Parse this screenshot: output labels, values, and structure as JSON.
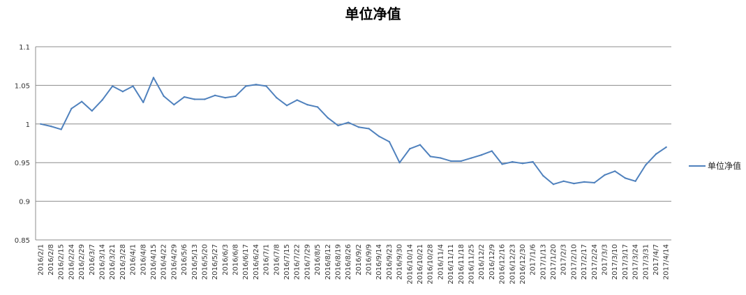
{
  "chart_data": {
    "type": "line",
    "title": "单位净值",
    "xlabel": "",
    "ylabel": "",
    "ylim": [
      0.85,
      1.1
    ],
    "yticks": [
      "1.1",
      "1.05",
      "1",
      "0.95",
      "0.9",
      "0.85"
    ],
    "grid": true,
    "legend_position": "right",
    "categories": [
      "2016/2/1",
      "2016/2/8",
      "2016/2/15",
      "2016/2/24",
      "2016/2/29",
      "2016/3/7",
      "2016/3/14",
      "2016/3/21",
      "2016/3/28",
      "2016/4/1",
      "2016/4/8",
      "2016/4/15",
      "2016/4/22",
      "2016/4/29",
      "2016/5/6",
      "2016/5/13",
      "2016/5/20",
      "2016/5/27",
      "2016/6/3",
      "2016/6/8",
      "2016/6/17",
      "2016/6/24",
      "2016/7/1",
      "2016/7/8",
      "2016/7/15",
      "2016/7/22",
      "2016/7/29",
      "2016/8/5",
      "2016/8/12",
      "2016/8/19",
      "2016/8/26",
      "2016/9/2",
      "2016/9/9",
      "2016/9/14",
      "2016/9/23",
      "2016/9/30",
      "2016/10/14",
      "2016/10/21",
      "2016/10/28",
      "2016/11/4",
      "2016/11/11",
      "2016/11/18",
      "2016/11/25",
      "2016/12/2",
      "2016/12/9",
      "2016/12/16",
      "2016/12/23",
      "2016/12/30",
      "2017/1/6",
      "2017/1/13",
      "2017/1/20",
      "2017/2/3",
      "2017/2/10",
      "2017/2/17",
      "2017/2/24",
      "2017/3/3",
      "2017/3/10",
      "2017/3/17",
      "2017/3/24",
      "2017/3/31",
      "2017/4/7",
      "2017/4/14"
    ],
    "series": [
      {
        "name": "单位净值",
        "color": "#4f81bd",
        "values": [
          1.0,
          0.997,
          0.993,
          1.02,
          1.029,
          1.017,
          1.031,
          1.049,
          1.042,
          1.049,
          1.028,
          1.06,
          1.036,
          1.025,
          1.035,
          1.032,
          1.032,
          1.037,
          1.034,
          1.036,
          1.049,
          1.051,
          1.049,
          1.034,
          1.024,
          1.031,
          1.025,
          1.022,
          1.008,
          0.998,
          1.002,
          0.996,
          0.994,
          0.984,
          0.977,
          0.95,
          0.968,
          0.973,
          0.958,
          0.956,
          0.952,
          0.952,
          0.956,
          0.96,
          0.965,
          0.948,
          0.951,
          0.949,
          0.951,
          0.933,
          0.922,
          0.926,
          0.923,
          0.925,
          0.924,
          0.934,
          0.939,
          0.93,
          0.926,
          0.947,
          0.961,
          0.97
        ]
      }
    ]
  }
}
